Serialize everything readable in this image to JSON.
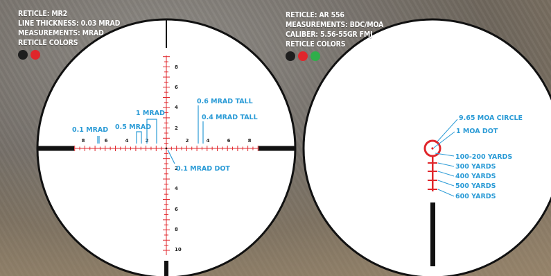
{
  "left_panel": {
    "reticle": "RETICLE: MR2",
    "line_thickness": "LINE THICKNESS: 0.03 MRAD",
    "measurements": "MEASUREMENTS: MRAD",
    "reticle_colors": "RETICLE COLORS",
    "colors": [
      "#1e1e1e",
      "#e0262b"
    ],
    "labels": {
      "mrad_0_1": "0.1 MRAD",
      "mrad_0_5": "0.5 MRAD",
      "mrad_1": "1 MRAD",
      "tall_0_6": "0.6 MRAD TALL",
      "tall_0_4": "0.4 MRAD TALL",
      "dot_0_1": "0.1 MRAD DOT"
    },
    "h_ticks_left": [
      "8",
      "6",
      "4",
      "2"
    ],
    "h_ticks_right": [
      "2",
      "4",
      "6",
      "8"
    ],
    "v_ticks_up": [
      "8",
      "6",
      "4",
      "2"
    ],
    "v_ticks_down": [
      "2",
      "4",
      "6",
      "8",
      "10"
    ]
  },
  "right_panel": {
    "reticle": "RETICLE: AR 556",
    "measurements": "MEASUREMENTS: BDC/MOA",
    "caliber": "CALIBER: 5.56-55GR FMJ",
    "reticle_colors": "RETICLE COLORS",
    "colors": [
      "#1e1e1e",
      "#e0262b",
      "#2fae4a"
    ],
    "labels": {
      "circle": "9.65 MOA CIRCLE",
      "dot": "1 MOA DOT",
      "y100_200": "100-200 YARDS",
      "y300": "300 YARDS",
      "y400": "400 YARDS",
      "y500": "500 YARDS",
      "y600": "600 YARDS"
    }
  },
  "accent_color": "#2b9bd6",
  "reticle_red": "#e0262b"
}
